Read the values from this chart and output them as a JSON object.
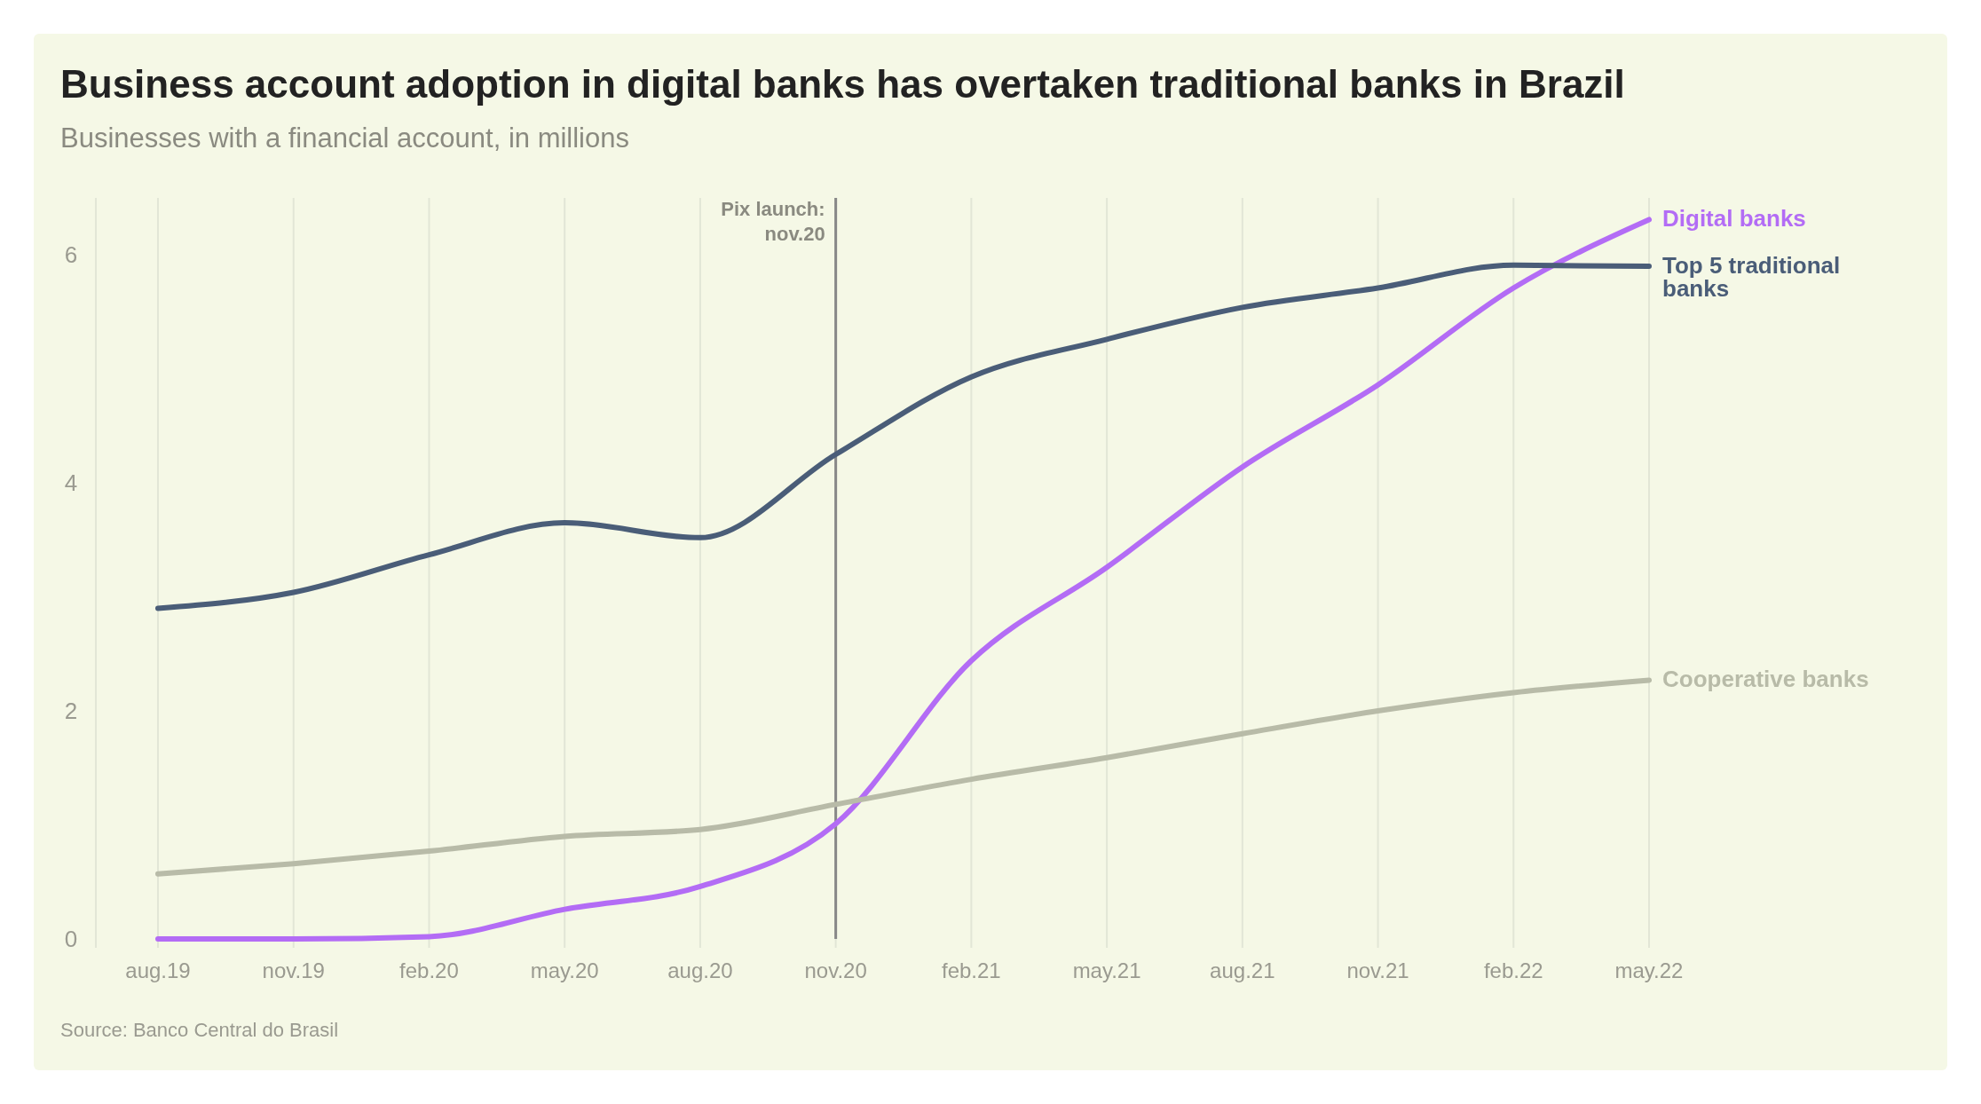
{
  "chart_data": {
    "type": "line",
    "title": "Business account adoption in digital banks has overtaken traditional banks in Brazil",
    "subtitle": "Businesses with a financial account, in millions",
    "categories": [
      "aug.19",
      "nov.19",
      "feb.20",
      "may.20",
      "aug.20",
      "nov.20",
      "feb.21",
      "may.21",
      "aug.21",
      "nov.21",
      "feb.22",
      "may.22"
    ],
    "series": [
      {
        "name": "Digital banks",
        "color": "#b36cf5",
        "values": [
          0,
          0,
          0.02,
          0.26,
          0.46,
          1.01,
          2.44,
          3.26,
          4.14,
          4.86,
          5.71,
          6.31
        ]
      },
      {
        "name": "Top 5 traditional banks",
        "color": "#4a5d78",
        "values": [
          2.9,
          3.04,
          3.37,
          3.65,
          3.52,
          4.25,
          4.93,
          5.26,
          5.54,
          5.71,
          5.91,
          5.9
        ]
      },
      {
        "name": "Cooperative banks",
        "color": "#b8bba8",
        "values": [
          0.57,
          0.66,
          0.77,
          0.9,
          0.96,
          1.18,
          1.4,
          1.59,
          1.8,
          2.0,
          2.16,
          2.27
        ]
      }
    ],
    "ylim": [
      0,
      6.5
    ],
    "yticks": [
      0,
      2,
      4,
      6
    ],
    "grid": "x",
    "ref_lines": [
      {
        "axis": "x",
        "value": "nov.20",
        "label": "Pix launch: nov.20",
        "color": "#888888"
      }
    ],
    "annotations": [
      "Source: Banco Central do Brasil"
    ]
  }
}
